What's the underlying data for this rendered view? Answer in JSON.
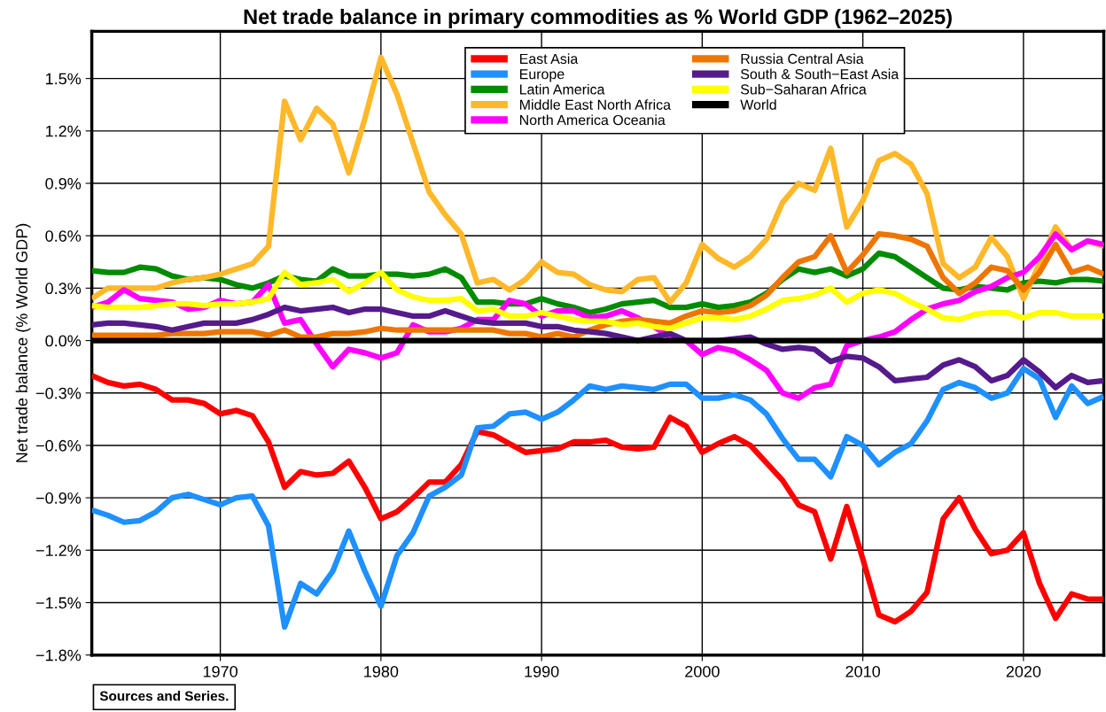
{
  "chart_data": {
    "type": "line",
    "title": "Net trade balance in primary commodities as % World GDP (1962–2025)",
    "ylabel": "Net trade balance (% World GDP)",
    "annotations": [
      "Sources and Series."
    ],
    "x": [
      1962,
      1963,
      1964,
      1965,
      1966,
      1967,
      1968,
      1969,
      1970,
      1971,
      1972,
      1973,
      1974,
      1975,
      1976,
      1977,
      1978,
      1979,
      1980,
      1981,
      1982,
      1983,
      1984,
      1985,
      1986,
      1987,
      1988,
      1989,
      1990,
      1991,
      1992,
      1993,
      1994,
      1995,
      1996,
      1997,
      1998,
      1999,
      2000,
      2001,
      2002,
      2003,
      2004,
      2005,
      2006,
      2007,
      2008,
      2009,
      2010,
      2011,
      2012,
      2013,
      2014,
      2015,
      2016,
      2017,
      2018,
      2019,
      2020,
      2021,
      2022,
      2023,
      2024,
      2025
    ],
    "xlim": [
      1962,
      2025
    ],
    "xticks": [
      1970,
      1980,
      1990,
      2000,
      2010,
      2020
    ],
    "ylim": [
      -1.8,
      1.77
    ],
    "yticks": [
      {
        "value": 1.5,
        "label": "1.5%"
      },
      {
        "value": 1.2,
        "label": "1.2%"
      },
      {
        "value": 0.9,
        "label": "0.9%"
      },
      {
        "value": 0.6,
        "label": "0.6%"
      },
      {
        "value": 0.3,
        "label": "0.3%"
      },
      {
        "value": 0,
        "label": "0.0%"
      },
      {
        "value": -0.3,
        "label": "−0.3%"
      },
      {
        "value": -0.6,
        "label": "−0.6%"
      },
      {
        "value": -0.9,
        "label": "−0.9%"
      },
      {
        "value": -1.2,
        "label": "−1.2%"
      },
      {
        "value": -1.5,
        "label": "−1.5%"
      },
      {
        "value": -1.8,
        "label": "−1.8%"
      }
    ],
    "grid": true,
    "legend": "top right",
    "series": [
      {
        "name": "East Asia",
        "color": "#ff0000",
        "values": [
          -0.2,
          -0.24,
          -0.26,
          -0.25,
          -0.28,
          -0.34,
          -0.34,
          -0.36,
          -0.42,
          -0.4,
          -0.43,
          -0.58,
          -0.84,
          -0.75,
          -0.77,
          -0.76,
          -0.69,
          -0.84,
          -1.02,
          -0.98,
          -0.9,
          -0.81,
          -0.81,
          -0.71,
          -0.52,
          -0.54,
          -0.59,
          -0.64,
          -0.63,
          -0.62,
          -0.58,
          -0.58,
          -0.57,
          -0.61,
          -0.62,
          -0.61,
          -0.44,
          -0.49,
          -0.64,
          -0.59,
          -0.55,
          -0.6,
          -0.7,
          -0.8,
          -0.94,
          -0.98,
          -1.25,
          -0.95,
          -1.25,
          -1.57,
          -1.61,
          -1.55,
          -1.44,
          -1.02,
          -0.9,
          -1.08,
          -1.22,
          -1.2,
          -1.1,
          -1.39,
          -1.59,
          -1.45,
          -1.48,
          -1.48
        ]
      },
      {
        "name": "Europe",
        "color": "#1e90ff",
        "values": [
          -0.97,
          -1.0,
          -1.04,
          -1.03,
          -0.98,
          -0.9,
          -0.88,
          -0.91,
          -0.94,
          -0.9,
          -0.89,
          -1.06,
          -1.64,
          -1.39,
          -1.45,
          -1.32,
          -1.09,
          -1.32,
          -1.52,
          -1.23,
          -1.1,
          -0.89,
          -0.84,
          -0.77,
          -0.5,
          -0.49,
          -0.42,
          -0.41,
          -0.45,
          -0.41,
          -0.34,
          -0.26,
          -0.28,
          -0.26,
          -0.27,
          -0.28,
          -0.25,
          -0.25,
          -0.33,
          -0.33,
          -0.31,
          -0.34,
          -0.42,
          -0.56,
          -0.68,
          -0.68,
          -0.78,
          -0.55,
          -0.6,
          -0.71,
          -0.64,
          -0.59,
          -0.46,
          -0.28,
          -0.24,
          -0.27,
          -0.33,
          -0.3,
          -0.16,
          -0.22,
          -0.44,
          -0.26,
          -0.36,
          -0.32
        ]
      },
      {
        "name": "Latin America",
        "color": "#008b00",
        "values": [
          0.4,
          0.39,
          0.39,
          0.42,
          0.41,
          0.37,
          0.35,
          0.36,
          0.35,
          0.32,
          0.3,
          0.33,
          0.37,
          0.35,
          0.34,
          0.41,
          0.37,
          0.37,
          0.38,
          0.38,
          0.37,
          0.38,
          0.41,
          0.36,
          0.22,
          0.22,
          0.21,
          0.21,
          0.24,
          0.21,
          0.19,
          0.16,
          0.18,
          0.21,
          0.22,
          0.23,
          0.19,
          0.19,
          0.21,
          0.19,
          0.2,
          0.22,
          0.27,
          0.35,
          0.41,
          0.39,
          0.41,
          0.37,
          0.41,
          0.5,
          0.48,
          0.42,
          0.36,
          0.3,
          0.29,
          0.31,
          0.3,
          0.29,
          0.33,
          0.34,
          0.33,
          0.35,
          0.35,
          0.34
        ]
      },
      {
        "name": "Middle East North Africa",
        "color": "#ffb829",
        "values": [
          0.24,
          0.3,
          0.3,
          0.3,
          0.3,
          0.33,
          0.35,
          0.36,
          0.38,
          0.41,
          0.44,
          0.54,
          1.37,
          1.15,
          1.33,
          1.24,
          0.96,
          1.27,
          1.62,
          1.41,
          1.13,
          0.85,
          0.72,
          0.61,
          0.33,
          0.35,
          0.29,
          0.35,
          0.45,
          0.39,
          0.38,
          0.32,
          0.29,
          0.28,
          0.35,
          0.36,
          0.22,
          0.33,
          0.55,
          0.47,
          0.42,
          0.48,
          0.58,
          0.79,
          0.9,
          0.86,
          1.1,
          0.65,
          0.8,
          1.03,
          1.07,
          1.01,
          0.84,
          0.44,
          0.36,
          0.42,
          0.59,
          0.48,
          0.24,
          0.44,
          0.65,
          0.52,
          0.57,
          0.54
        ]
      },
      {
        "name": "North America Oceania",
        "color": "#ff00ff",
        "values": [
          0.19,
          0.22,
          0.29,
          0.24,
          0.23,
          0.22,
          0.18,
          0.19,
          0.23,
          0.21,
          0.22,
          0.32,
          0.1,
          0.12,
          -0.02,
          -0.15,
          -0.05,
          -0.07,
          -0.1,
          -0.07,
          0.09,
          0.05,
          0.05,
          0.07,
          0.12,
          0.12,
          0.23,
          0.21,
          0.14,
          0.17,
          0.17,
          0.13,
          0.14,
          0.17,
          0.13,
          0.08,
          0.02,
          0.0,
          -0.08,
          -0.04,
          -0.06,
          -0.11,
          -0.17,
          -0.3,
          -0.33,
          -0.27,
          -0.25,
          -0.03,
          0.0,
          0.02,
          0.05,
          0.12,
          0.18,
          0.21,
          0.23,
          0.28,
          0.31,
          0.36,
          0.39,
          0.48,
          0.61,
          0.52,
          0.57,
          0.55
        ]
      },
      {
        "name": "Russia Central Asia",
        "color": "#ee7600",
        "values": [
          0.03,
          0.03,
          0.03,
          0.03,
          0.03,
          0.04,
          0.04,
          0.04,
          0.05,
          0.05,
          0.05,
          0.03,
          0.06,
          0.02,
          0.02,
          0.04,
          0.04,
          0.05,
          0.07,
          0.06,
          0.06,
          0.06,
          0.06,
          0.06,
          0.06,
          0.06,
          0.04,
          0.04,
          0.02,
          0.04,
          0.02,
          0.06,
          0.09,
          0.11,
          0.12,
          0.11,
          0.1,
          0.14,
          0.17,
          0.16,
          0.17,
          0.2,
          0.26,
          0.36,
          0.45,
          0.48,
          0.6,
          0.39,
          0.49,
          0.61,
          0.6,
          0.58,
          0.54,
          0.36,
          0.27,
          0.33,
          0.42,
          0.4,
          0.29,
          0.39,
          0.55,
          0.39,
          0.42,
          0.38
        ]
      },
      {
        "name": "South & South−East Asia",
        "color": "#551a8b",
        "values": [
          0.09,
          0.1,
          0.1,
          0.09,
          0.08,
          0.06,
          0.08,
          0.1,
          0.1,
          0.1,
          0.12,
          0.15,
          0.19,
          0.17,
          0.18,
          0.19,
          0.16,
          0.18,
          0.18,
          0.16,
          0.14,
          0.14,
          0.17,
          0.14,
          0.11,
          0.1,
          0.1,
          0.1,
          0.08,
          0.08,
          0.06,
          0.05,
          0.04,
          0.02,
          0.0,
          0.02,
          0.04,
          0.0,
          0.0,
          0.0,
          0.01,
          0.02,
          -0.02,
          -0.05,
          -0.04,
          -0.05,
          -0.12,
          -0.09,
          -0.1,
          -0.15,
          -0.23,
          -0.22,
          -0.21,
          -0.14,
          -0.11,
          -0.15,
          -0.23,
          -0.2,
          -0.11,
          -0.18,
          -0.27,
          -0.2,
          -0.24,
          -0.23
        ]
      },
      {
        "name": "Sub−Saharan Africa",
        "color": "#ffff00",
        "values": [
          0.2,
          0.19,
          0.19,
          0.19,
          0.2,
          0.21,
          0.21,
          0.2,
          0.21,
          0.21,
          0.22,
          0.24,
          0.39,
          0.32,
          0.33,
          0.35,
          0.28,
          0.33,
          0.39,
          0.29,
          0.25,
          0.23,
          0.23,
          0.24,
          0.17,
          0.18,
          0.14,
          0.14,
          0.16,
          0.14,
          0.12,
          0.11,
          0.11,
          0.09,
          0.1,
          0.08,
          0.07,
          0.1,
          0.13,
          0.13,
          0.12,
          0.14,
          0.18,
          0.23,
          0.24,
          0.26,
          0.3,
          0.22,
          0.27,
          0.29,
          0.27,
          0.22,
          0.18,
          0.13,
          0.12,
          0.15,
          0.16,
          0.16,
          0.13,
          0.16,
          0.16,
          0.14,
          0.14,
          0.14
        ]
      },
      {
        "name": "World",
        "color": "#000000",
        "values": [
          0,
          0,
          0,
          0,
          0,
          0,
          0,
          0,
          0,
          0,
          0,
          0,
          0,
          0,
          0,
          0,
          0,
          0,
          0,
          0,
          0,
          0,
          0,
          0,
          0,
          0,
          0,
          0,
          0,
          0,
          0,
          0,
          0,
          0,
          0,
          0,
          0,
          0,
          0,
          0,
          0,
          0,
          0,
          0,
          0,
          0,
          0,
          0,
          0,
          0,
          0,
          0,
          0,
          0,
          0,
          0,
          0,
          0,
          0,
          0,
          0,
          0,
          0,
          0
        ]
      }
    ]
  }
}
